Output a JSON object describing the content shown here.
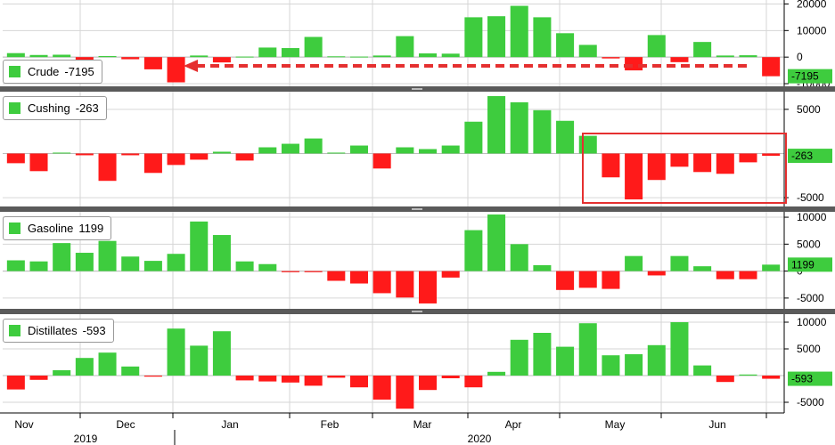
{
  "colors": {
    "positive": "#3ecc3e",
    "negative": "#ff1a1a",
    "grid": "#d6d6d6",
    "axis_text": "#000",
    "box": "#e53030",
    "arrow": "#e53030",
    "latest_tag_bg": "#3ecc3e",
    "latest_tag_text": "#000"
  },
  "x_axis": {
    "months": [
      "Nov",
      "Dec",
      "Jan",
      "Feb",
      "Mar",
      "Apr",
      "May",
      "Jun"
    ],
    "years": [
      "2019",
      "2020"
    ]
  },
  "chart_data": [
    {
      "type": "bar",
      "name": "Crude",
      "legend_label": "Crude",
      "latest_value": "-7195",
      "yticks": [
        20000,
        10000,
        0,
        -10000
      ],
      "ytick_labels": [
        "20000",
        "10000",
        "0",
        "-10000"
      ],
      "ylim": [
        -11000,
        21500
      ],
      "values": [
        1500,
        800,
        900,
        -2300,
        400,
        -800,
        -4600,
        -9500,
        600,
        -2000,
        200,
        3600,
        3400,
        7600,
        300,
        200,
        600,
        7900,
        1400,
        1300,
        15000,
        15400,
        19300,
        15000,
        9000,
        4600,
        -500,
        -5000,
        8300,
        -1900,
        5700,
        600,
        700,
        -7195
      ]
    },
    {
      "type": "bar",
      "name": "Cushing",
      "legend_label": "Cushing",
      "latest_value": "-263",
      "yticks": [
        5000,
        -5000
      ],
      "ytick_labels": [
        "5000",
        "-5000"
      ],
      "ylim": [
        -6000,
        7000
      ],
      "values": [
        -1100,
        -2000,
        100,
        -200,
        -3100,
        -200,
        -2200,
        -1300,
        -700,
        200,
        -800,
        700,
        1100,
        1700,
        100,
        900,
        -1700,
        700,
        500,
        900,
        3600,
        6500,
        5800,
        4900,
        3700,
        2000,
        -2700,
        -5200,
        -3000,
        -1500,
        -2100,
        -2300,
        -1000,
        -263
      ]
    },
    {
      "type": "bar",
      "name": "Gasoline",
      "legend_label": "Gasoline",
      "latest_value": "1199",
      "yticks": [
        10000,
        5000,
        0,
        -5000
      ],
      "ytick_labels": [
        "10000",
        "5000",
        "0",
        "-5000"
      ],
      "ylim": [
        -7000,
        11000
      ],
      "values": [
        2000,
        1800,
        5200,
        3400,
        5600,
        2700,
        1900,
        3200,
        9200,
        6700,
        1800,
        1300,
        -200,
        -200,
        -1800,
        -2300,
        -4100,
        -4900,
        -6000,
        -1200,
        7600,
        10500,
        5000,
        1100,
        -3500,
        -3100,
        -3300,
        2800,
        -800,
        2800,
        900,
        -1500,
        -1500,
        1199
      ]
    },
    {
      "type": "bar",
      "name": "Distillates",
      "legend_label": "Distillates",
      "latest_value": "-593",
      "yticks": [
        10000,
        5000,
        -5000
      ],
      "ytick_labels": [
        "10000",
        "5000",
        "-5000"
      ],
      "ylim": [
        -7000,
        11500
      ],
      "values": [
        -2600,
        -800,
        1000,
        3300,
        4300,
        1700,
        -200,
        8800,
        5600,
        8300,
        -900,
        -1100,
        -1300,
        -1900,
        -400,
        -2200,
        -4500,
        -6200,
        -2700,
        -500,
        -2200,
        700,
        6700,
        8000,
        5400,
        9800,
        3800,
        4000,
        5700,
        10000,
        1900,
        -1200,
        200,
        -593
      ]
    }
  ]
}
